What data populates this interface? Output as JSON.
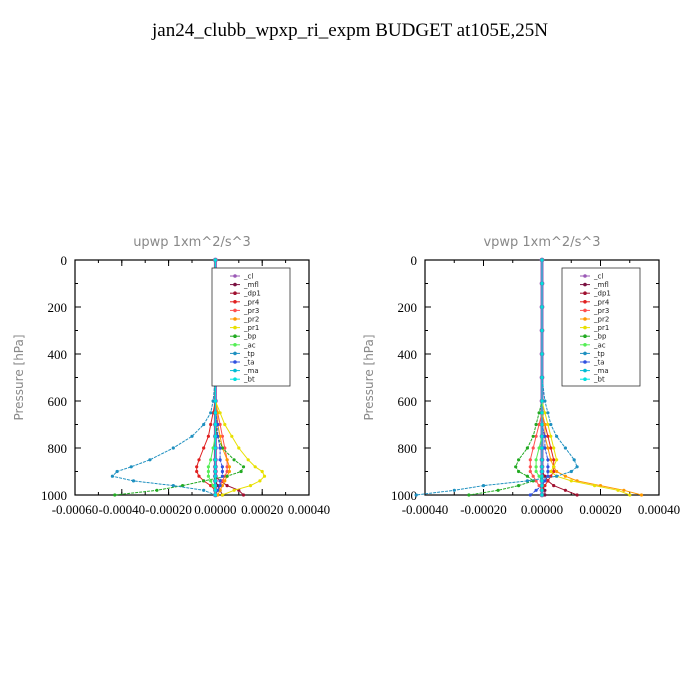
{
  "title": "jan24_clubb_wpxp_ri_expm  BUDGET at105E,25N",
  "legend_items": [
    {
      "label": "_cl",
      "color": "#9b59b6"
    },
    {
      "label": "_mfl",
      "color": "#7b1040"
    },
    {
      "label": "_dp1",
      "color": "#a01030"
    },
    {
      "label": "_pr4",
      "color": "#e02020"
    },
    {
      "label": "_pr3",
      "color": "#ff5050"
    },
    {
      "label": "_pr2",
      "color": "#ff9900"
    },
    {
      "label": "_pr1",
      "color": "#e8e000"
    },
    {
      "label": "_bp",
      "color": "#22aa22"
    },
    {
      "label": "_ac",
      "color": "#55ee55"
    },
    {
      "label": "_tp",
      "color": "#1e90c0"
    },
    {
      "label": "_ta",
      "color": "#3050e0"
    },
    {
      "label": "_ma",
      "color": "#00bcd4"
    },
    {
      "label": "_bt",
      "color": "#00e0e0"
    }
  ],
  "chart_data": [
    {
      "type": "line",
      "title": "upwp   1xm^2/s^3",
      "ylabel": "Pressure [hPa]",
      "xlabel": "",
      "xlim": [
        -0.0006,
        0.0004
      ],
      "ylim": [
        1000,
        0
      ],
      "xticks": [
        "-0.00060",
        "-0.00040",
        "-0.00020",
        "0.00000",
        "0.00020",
        "0.00040"
      ],
      "yticks": [
        "0",
        "200",
        "400",
        "600",
        "800",
        "1000"
      ],
      "legend_position": "top-right",
      "y": [
        0,
        100,
        200,
        300,
        400,
        500,
        600,
        650,
        700,
        750,
        800,
        850,
        880,
        900,
        920,
        940,
        960,
        980,
        1000
      ],
      "series": [
        {
          "name": "_cl",
          "values": [
            0,
            0,
            0,
            0,
            0,
            0,
            0,
            0,
            0,
            0,
            0,
            0,
            0,
            0,
            0,
            0,
            0,
            0,
            0
          ]
        },
        {
          "name": "_mfl",
          "values": [
            0,
            0,
            0,
            0,
            0,
            0,
            0,
            0,
            0,
            0,
            0,
            0,
            0,
            0,
            0,
            0,
            1e-05,
            2e-05,
            3e-05
          ]
        },
        {
          "name": "_dp1",
          "values": [
            0,
            0,
            0,
            0,
            0,
            0,
            0,
            0,
            0,
            0,
            0,
            0,
            0,
            0,
            0,
            2e-05,
            5e-05,
            0.0001,
            0.00012
          ]
        },
        {
          "name": "_pr4",
          "values": [
            0,
            0,
            0,
            0,
            0,
            0,
            0,
            -1e-05,
            -2e-05,
            -3e-05,
            -5e-05,
            -7e-05,
            -8e-05,
            -8e-05,
            -7e-05,
            -5e-05,
            -2e-05,
            0,
            0
          ]
        },
        {
          "name": "_pr3",
          "values": [
            0,
            0,
            0,
            0,
            0,
            0,
            0,
            1e-05,
            2e-05,
            3e-05,
            4e-05,
            5e-05,
            5e-05,
            5e-05,
            4e-05,
            3e-05,
            2e-05,
            1e-05,
            0
          ]
        },
        {
          "name": "_pr2",
          "values": [
            0,
            0,
            0,
            0,
            0,
            0,
            0,
            1e-05,
            1e-05,
            2e-05,
            3e-05,
            5e-05,
            6e-05,
            6e-05,
            5e-05,
            4e-05,
            3e-05,
            2e-05,
            1e-05
          ]
        },
        {
          "name": "_pr1",
          "values": [
            0,
            0,
            0,
            0,
            0,
            0,
            0,
            2e-05,
            4e-05,
            7e-05,
            0.0001,
            0.00014,
            0.00017,
            0.0002,
            0.00021,
            0.00019,
            0.00015,
            8e-05,
            3e-05
          ]
        },
        {
          "name": "_bp",
          "values": [
            0,
            0,
            0,
            0,
            0,
            0,
            0,
            0,
            0,
            1e-05,
            3e-05,
            8e-05,
            0.00012,
            0.00011,
            5e-05,
            -5e-05,
            -0.00014,
            -0.00025,
            -0.00043
          ]
        },
        {
          "name": "_ac",
          "values": [
            0,
            0,
            0,
            0,
            0,
            0,
            0,
            0,
            0,
            0,
            -1e-05,
            -2e-05,
            -3e-05,
            -3e-05,
            -3e-05,
            -2e-05,
            -1e-05,
            0,
            0
          ]
        },
        {
          "name": "_tp",
          "values": [
            0,
            0,
            0,
            0,
            0,
            0,
            -1e-05,
            -2e-05,
            -5e-05,
            -0.0001,
            -0.00018,
            -0.00028,
            -0.00036,
            -0.00042,
            -0.00044,
            -0.00035,
            -0.00018,
            -5e-05,
            0
          ]
        },
        {
          "name": "_ta",
          "values": [
            0,
            0,
            0,
            0,
            0,
            0,
            0,
            0,
            1e-05,
            1e-05,
            2e-05,
            2e-05,
            3e-05,
            3e-05,
            3e-05,
            2e-05,
            2e-05,
            1e-05,
            0
          ]
        },
        {
          "name": "_ma",
          "values": [
            0,
            0,
            0,
            0,
            0,
            0,
            0,
            0,
            0,
            0,
            0,
            0,
            0,
            0,
            0,
            0,
            0,
            0,
            0
          ]
        },
        {
          "name": "_bt",
          "values": [
            0,
            0,
            0,
            0,
            0,
            0,
            0,
            0,
            0,
            0,
            0,
            0,
            0,
            0,
            0,
            0,
            0,
            0,
            0
          ]
        }
      ]
    },
    {
      "type": "line",
      "title": "vpwp   1xm^2/s^3",
      "ylabel": "Pressure [hPa]",
      "xlabel": "",
      "xlim": [
        -0.0004,
        0.0004
      ],
      "ylim": [
        1000,
        0
      ],
      "xticks": [
        "-0.00040",
        "-0.00020",
        "0.00000",
        "0.00020",
        "0.00040"
      ],
      "yticks": [
        "0",
        "200",
        "400",
        "600",
        "800",
        "1000"
      ],
      "legend_position": "top-right",
      "y": [
        0,
        100,
        200,
        300,
        400,
        500,
        600,
        650,
        700,
        750,
        800,
        850,
        880,
        900,
        920,
        940,
        960,
        980,
        1000
      ],
      "series": [
        {
          "name": "_cl",
          "values": [
            0,
            0,
            0,
            0,
            0,
            0,
            0,
            0,
            0,
            0,
            0,
            0,
            0,
            0,
            0,
            0,
            0,
            0,
            0
          ]
        },
        {
          "name": "_mfl",
          "values": [
            0,
            0,
            0,
            0,
            0,
            0,
            0,
            0,
            0,
            0,
            0,
            0,
            0,
            0,
            0,
            0,
            0,
            1e-05,
            1e-05
          ]
        },
        {
          "name": "_dp1",
          "values": [
            0,
            0,
            0,
            0,
            0,
            0,
            0,
            0,
            0,
            0,
            0,
            0,
            0,
            0,
            1e-05,
            2e-05,
            4e-05,
            8e-05,
            0.00012
          ]
        },
        {
          "name": "_pr4",
          "values": [
            0,
            0,
            0,
            0,
            0,
            0,
            0,
            0,
            1e-05,
            2e-05,
            3e-05,
            4e-05,
            4e-05,
            4e-05,
            3e-05,
            2e-05,
            1e-05,
            0,
            0
          ]
        },
        {
          "name": "_pr3",
          "values": [
            0,
            0,
            0,
            0,
            0,
            0,
            0,
            0,
            -1e-05,
            -2e-05,
            -3e-05,
            -4e-05,
            -4e-05,
            -4e-05,
            -3e-05,
            -2e-05,
            -1e-05,
            0,
            0
          ]
        },
        {
          "name": "_pr2",
          "values": [
            0,
            0,
            0,
            0,
            0,
            0,
            0,
            0,
            1e-05,
            1e-05,
            2e-05,
            3e-05,
            4e-05,
            5e-05,
            8e-05,
            0.00012,
            0.0002,
            0.00028,
            0.00034
          ]
        },
        {
          "name": "_pr1",
          "values": [
            0,
            0,
            0,
            0,
            0,
            0,
            0,
            1e-05,
            2e-05,
            3e-05,
            4e-05,
            5e-05,
            4e-05,
            3e-05,
            5e-05,
            0.0001,
            0.00018,
            0.00026,
            0.0003
          ]
        },
        {
          "name": "_bp",
          "values": [
            0,
            0,
            0,
            0,
            0,
            0,
            0,
            -1e-05,
            -2e-05,
            -3e-05,
            -5e-05,
            -8e-05,
            -9e-05,
            -8e-05,
            -5e-05,
            -3e-05,
            -8e-05,
            -0.00015,
            -0.00025
          ]
        },
        {
          "name": "_ac",
          "values": [
            0,
            0,
            0,
            0,
            0,
            0,
            0,
            0,
            0,
            0,
            -1e-05,
            -2e-05,
            -2e-05,
            -2e-05,
            -1e-05,
            0,
            0,
            0,
            0
          ]
        },
        {
          "name": "_tp",
          "values": [
            0,
            0,
            0,
            0,
            0,
            0,
            1e-05,
            2e-05,
            3e-05,
            5e-05,
            8e-05,
            0.00011,
            0.00012,
            0.0001,
            5e-05,
            -5e-05,
            -0.0002,
            -0.0003,
            -0.00043
          ]
        },
        {
          "name": "_ta",
          "values": [
            0,
            0,
            0,
            0,
            0,
            0,
            0,
            0,
            0,
            1e-05,
            1e-05,
            2e-05,
            2e-05,
            2e-05,
            2e-05,
            1e-05,
            0,
            -2e-05,
            -4e-05
          ]
        },
        {
          "name": "_ma",
          "values": [
            0,
            0,
            0,
            0,
            0,
            0,
            0,
            0,
            0,
            0,
            0,
            0,
            0,
            0,
            0,
            0,
            0,
            0,
            0
          ]
        },
        {
          "name": "_bt",
          "values": [
            0,
            0,
            0,
            0,
            0,
            0,
            0,
            0,
            0,
            0,
            0,
            0,
            0,
            0,
            0,
            0,
            0,
            0,
            0
          ]
        }
      ]
    }
  ]
}
